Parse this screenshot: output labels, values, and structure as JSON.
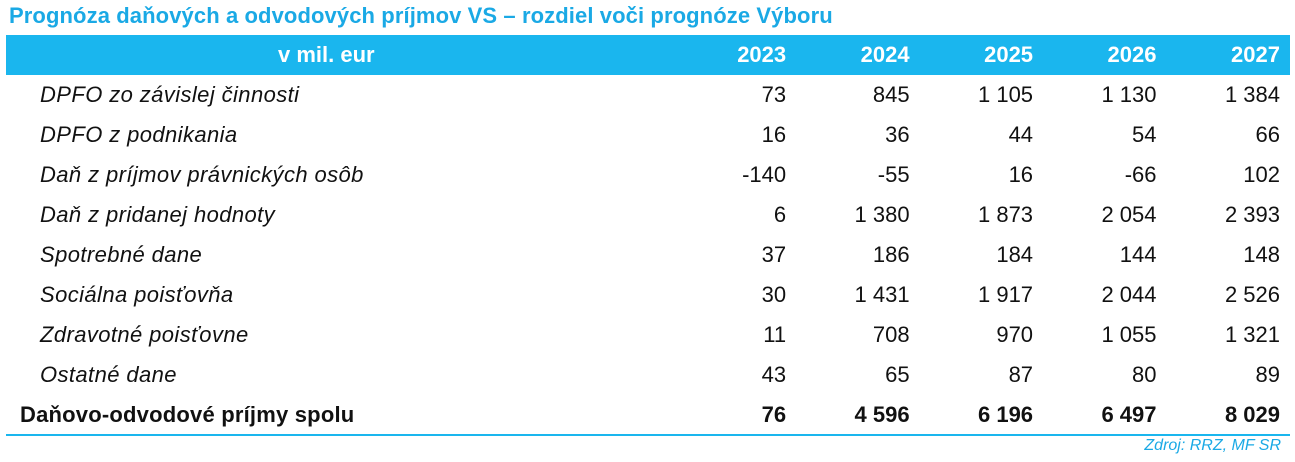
{
  "title": "Prognóza daňových a odvodových príjmov VS – rozdiel voči prognóze Výboru",
  "colors": {
    "accent": "#1ab6ee",
    "title": "#1aa9e5",
    "text": "#111111"
  },
  "table": {
    "unit_label": "v mil. eur",
    "years": [
      "2023",
      "2024",
      "2025",
      "2026",
      "2027"
    ],
    "rows": [
      {
        "label": "DPFO zo závislej činnosti",
        "values": [
          "73",
          "845",
          "1 105",
          "1 130",
          "1 384"
        ]
      },
      {
        "label": "DPFO z podnikania",
        "values": [
          "16",
          "36",
          "44",
          "54",
          "66"
        ]
      },
      {
        "label": "Daň z príjmov právnických osôb",
        "values": [
          "-140",
          "-55",
          "16",
          "-66",
          "102"
        ]
      },
      {
        "label": "Daň z pridanej hodnoty",
        "values": [
          "6",
          "1 380",
          "1 873",
          "2 054",
          "2 393"
        ]
      },
      {
        "label": "Spotrebné dane",
        "values": [
          "37",
          "186",
          "184",
          "144",
          "148"
        ]
      },
      {
        "label": "Sociálna poisťovňa",
        "values": [
          "30",
          "1 431",
          "1 917",
          "2 044",
          "2 526"
        ]
      },
      {
        "label": "Zdravotné poisťovne",
        "values": [
          "11",
          "708",
          "970",
          "1 055",
          "1 321"
        ]
      },
      {
        "label": "Ostatné dane",
        "values": [
          "43",
          "65",
          "87",
          "80",
          "89"
        ]
      }
    ],
    "total": {
      "label": "Daňovo-odvodové príjmy spolu",
      "values": [
        "76",
        "4 596",
        "6 196",
        "6 497",
        "8 029"
      ]
    }
  },
  "source": "Zdroj: RRZ, MF SR"
}
